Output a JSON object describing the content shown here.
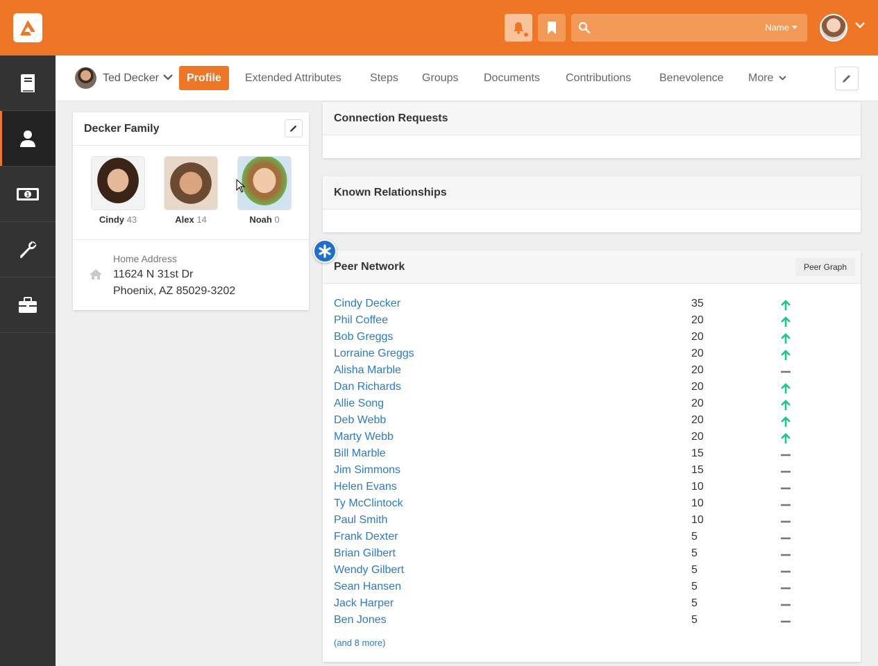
{
  "topbar": {
    "search_type": "Name",
    "search_placeholder": "",
    "accent_color": "#ee7625"
  },
  "sidebar": {
    "items": [
      {
        "icon": "book-icon",
        "active": false
      },
      {
        "icon": "person-icon",
        "active": true
      },
      {
        "icon": "money-icon",
        "active": false
      },
      {
        "icon": "wrench-icon",
        "active": false
      },
      {
        "icon": "briefcase-icon",
        "active": false
      }
    ]
  },
  "person": {
    "name": "Ted Decker"
  },
  "tabs": [
    {
      "label": "Profile",
      "active": true
    },
    {
      "label": "Extended Attributes"
    },
    {
      "label": "Steps"
    },
    {
      "label": "Groups"
    },
    {
      "label": "Documents"
    },
    {
      "label": "Contributions"
    },
    {
      "label": "Benevolence"
    },
    {
      "label": "More"
    }
  ],
  "family": {
    "title": "Decker Family",
    "members": [
      {
        "name": "Cindy",
        "age": "43"
      },
      {
        "name": "Alex",
        "age": "14"
      },
      {
        "name": "Noah",
        "age": "0"
      }
    ],
    "address_label": "Home Address",
    "address_line1": "11624 N 31st Dr",
    "address_line2": "Phoenix, AZ 85029-3202"
  },
  "connection_requests": {
    "title": "Connection Requests"
  },
  "known_relationships": {
    "title": "Known Relationships"
  },
  "peer_network": {
    "title": "Peer Network",
    "graph_button": "Peer Graph",
    "rows": [
      {
        "name": "Cindy Decker",
        "score": "35",
        "trend": "up"
      },
      {
        "name": "Phil Coffee",
        "score": "20",
        "trend": "up"
      },
      {
        "name": "Bob Greggs",
        "score": "20",
        "trend": "up"
      },
      {
        "name": "Lorraine Greggs",
        "score": "20",
        "trend": "up"
      },
      {
        "name": "Alisha Marble",
        "score": "20",
        "trend": "flat"
      },
      {
        "name": "Dan Richards",
        "score": "20",
        "trend": "up"
      },
      {
        "name": "Allie Song",
        "score": "20",
        "trend": "up"
      },
      {
        "name": "Deb Webb",
        "score": "20",
        "trend": "up"
      },
      {
        "name": "Marty Webb",
        "score": "20",
        "trend": "up"
      },
      {
        "name": "Bill Marble",
        "score": "15",
        "trend": "flat"
      },
      {
        "name": "Jim Simmons",
        "score": "15",
        "trend": "flat"
      },
      {
        "name": "Helen Evans",
        "score": "10",
        "trend": "flat"
      },
      {
        "name": "Ty McClintock",
        "score": "10",
        "trend": "flat"
      },
      {
        "name": "Paul Smith",
        "score": "10",
        "trend": "flat"
      },
      {
        "name": "Frank Dexter",
        "score": "5",
        "trend": "flat"
      },
      {
        "name": "Brian Gilbert",
        "score": "5",
        "trend": "flat"
      },
      {
        "name": "Wendy Gilbert",
        "score": "5",
        "trend": "flat"
      },
      {
        "name": "Sean Hansen",
        "score": "5",
        "trend": "flat"
      },
      {
        "name": "Jack Harper",
        "score": "5",
        "trend": "flat"
      },
      {
        "name": "Ben Jones",
        "score": "5",
        "trend": "flat"
      }
    ],
    "more_text": "(and 8 more)",
    "up_color": "#16c98d",
    "flat_color": "#777777"
  }
}
